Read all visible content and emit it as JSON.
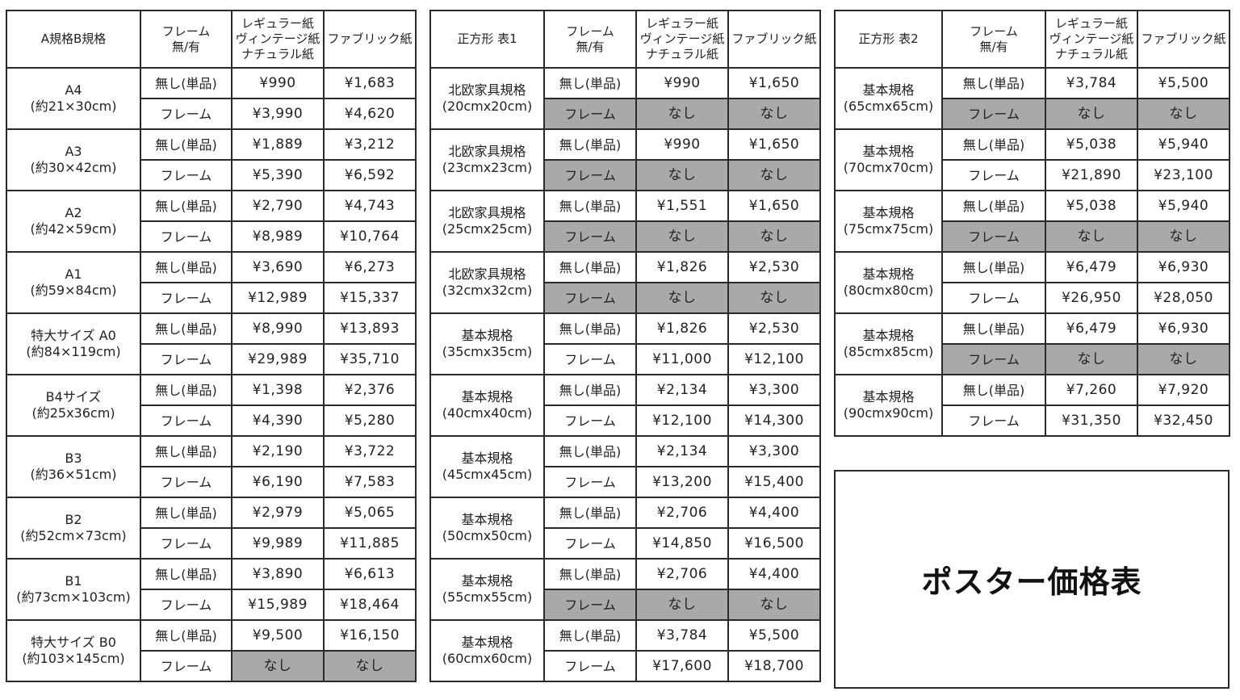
{
  "tables": [
    {
      "headers": [
        "A規格B規格",
        "フレーム\n無/有",
        "レギュラー紙\nヴィンテージ紙\nナチュラル紙",
        "ファブリック紙"
      ],
      "groups": [
        {
          "label": [
            "A4",
            "(約21×30cm)"
          ],
          "rows": [
            [
              "無し(単品)",
              "¥990",
              "¥1,683"
            ],
            [
              "フレーム",
              "¥3,990",
              "¥4,620"
            ]
          ]
        },
        {
          "label": [
            "A3",
            "(約30×42cm)"
          ],
          "rows": [
            [
              "無し(単品)",
              "¥1,889",
              "¥3,212"
            ],
            [
              "フレーム",
              "¥5,390",
              "¥6,592"
            ]
          ]
        },
        {
          "label": [
            "A2",
            "(約42×59cm)"
          ],
          "rows": [
            [
              "無し(単品)",
              "¥2,790",
              "¥4,743"
            ],
            [
              "フレーム",
              "¥8,989",
              "¥10,764"
            ]
          ]
        },
        {
          "label": [
            "A1",
            "(約59×84cm)"
          ],
          "rows": [
            [
              "無し(単品)",
              "¥3,690",
              "¥6,273"
            ],
            [
              "フレーム",
              "¥12,989",
              "¥15,337"
            ]
          ]
        },
        {
          "label": [
            "特大サイズ A0",
            "(約84×119cm)"
          ],
          "rows": [
            [
              "無し(単品)",
              "¥8,990",
              "¥13,893"
            ],
            [
              "フレーム",
              "¥29,989",
              "¥35,710"
            ]
          ]
        },
        {
          "label": [
            "B4サイズ",
            "(約25x36cm)"
          ],
          "rows": [
            [
              "無し(単品)",
              "¥1,398",
              "¥2,376"
            ],
            [
              "フレーム",
              "¥4,390",
              "¥5,280"
            ]
          ]
        },
        {
          "label": [
            "B3",
            "(約36×51cm)"
          ],
          "rows": [
            [
              "無し(単品)",
              "¥2,190",
              "¥3,722"
            ],
            [
              "フレーム",
              "¥6,190",
              "¥7,583"
            ]
          ]
        },
        {
          "label": [
            "B2",
            "(約52cm×73cm)"
          ],
          "rows": [
            [
              "無し(単品)",
              "¥2,979",
              "¥5,065"
            ],
            [
              "フレーム",
              "¥9,989",
              "¥11,885"
            ]
          ]
        },
        {
          "label": [
            "B1",
            "(約73cm×103cm)"
          ],
          "rows": [
            [
              "無し(単品)",
              "¥3,890",
              "¥6,613"
            ],
            [
              "フレーム",
              "¥15,989",
              "¥18,464"
            ]
          ]
        },
        {
          "label": [
            "特大サイズ B0",
            "(約103×145cm)"
          ],
          "rows": [
            [
              "無し(単品)",
              "¥9,500",
              "¥16,150"
            ],
            [
              "フレーム",
              "なし",
              "なし"
            ]
          ]
        }
      ]
    },
    {
      "headers": [
        "正方形 表1",
        "フレーム\n無/有",
        "レギュラー紙\nヴィンテージ紙\nナチュラル紙",
        "ファブリック紙"
      ],
      "groups": [
        {
          "label": [
            "北欧家具規格",
            "(20cmx20cm)"
          ],
          "rows": [
            [
              "無し(単品)",
              "¥990",
              "¥1,650"
            ],
            [
              "フレーム",
              "なし",
              "なし"
            ]
          ]
        },
        {
          "label": [
            "北欧家具規格",
            "(23cmx23cm)"
          ],
          "rows": [
            [
              "無し(単品)",
              "¥990",
              "¥1,650"
            ],
            [
              "フレーム",
              "なし",
              "なし"
            ]
          ]
        },
        {
          "label": [
            "北欧家具規格",
            "(25cmx25cm)"
          ],
          "rows": [
            [
              "無し(単品)",
              "¥1,551",
              "¥1,650"
            ],
            [
              "フレーム",
              "なし",
              "なし"
            ]
          ]
        },
        {
          "label": [
            "北欧家具規格",
            "(32cmx32cm)"
          ],
          "rows": [
            [
              "無し(単品)",
              "¥1,826",
              "¥2,530"
            ],
            [
              "フレーム",
              "なし",
              "なし"
            ]
          ]
        },
        {
          "label": [
            "基本規格",
            "(35cmx35cm)"
          ],
          "rows": [
            [
              "無し(単品)",
              "¥1,826",
              "¥2,530"
            ],
            [
              "フレーム",
              "¥11,000",
              "¥12,100"
            ]
          ]
        },
        {
          "label": [
            "基本規格",
            "(40cmx40cm)"
          ],
          "rows": [
            [
              "無し(単品)",
              "¥2,134",
              "¥3,300"
            ],
            [
              "フレーム",
              "¥12,100",
              "¥14,300"
            ]
          ]
        },
        {
          "label": [
            "基本規格",
            "(45cmx45cm)"
          ],
          "rows": [
            [
              "無し(単品)",
              "¥2,134",
              "¥3,300"
            ],
            [
              "フレーム",
              "¥13,200",
              "¥15,400"
            ]
          ]
        },
        {
          "label": [
            "基本規格",
            "(50cmx50cm)"
          ],
          "rows": [
            [
              "無し(単品)",
              "¥2,706",
              "¥4,400"
            ],
            [
              "フレーム",
              "¥14,850",
              "¥16,500"
            ]
          ]
        },
        {
          "label": [
            "基本規格",
            "(55cmx55cm)"
          ],
          "rows": [
            [
              "無し(単品)",
              "¥2,706",
              "¥4,400"
            ],
            [
              "フレーム",
              "なし",
              "なし"
            ]
          ]
        },
        {
          "label": [
            "基本規格",
            "(60cmx60cm)"
          ],
          "rows": [
            [
              "無し(単品)",
              "¥3,784",
              "¥5,500"
            ],
            [
              "フレーム",
              "¥17,600",
              "¥18,700"
            ]
          ]
        }
      ]
    },
    {
      "headers": [
        "正方形 表2",
        "フレーム\n無/有",
        "レギュラー紙\nヴィンテージ紙\nナチュラル紙",
        "ファブリック紙"
      ],
      "groups": [
        {
          "label": [
            "基本規格",
            "(65cmx65cm)"
          ],
          "rows": [
            [
              "無し(単品)",
              "¥3,784",
              "¥5,500"
            ],
            [
              "フレーム",
              "なし",
              "なし"
            ]
          ]
        },
        {
          "label": [
            "基本規格",
            "(70cmx70cm)"
          ],
          "rows": [
            [
              "無し(単品)",
              "¥5,038",
              "¥5,940"
            ],
            [
              "フレーム",
              "¥21,890",
              "¥23,100"
            ]
          ]
        },
        {
          "label": [
            "基本規格",
            "(75cmx75cm)"
          ],
          "rows": [
            [
              "無し(単品)",
              "¥5,038",
              "¥5,940"
            ],
            [
              "フレーム",
              "なし",
              "なし"
            ]
          ]
        },
        {
          "label": [
            "基本規格",
            "(80cmx80cm)"
          ],
          "rows": [
            [
              "無し(単品)",
              "¥6,479",
              "¥6,930"
            ],
            [
              "フレーム",
              "¥26,950",
              "¥28,050"
            ]
          ]
        },
        {
          "label": [
            "基本規格",
            "(85cmx85cm)"
          ],
          "rows": [
            [
              "無し(単品)",
              "¥6,479",
              "¥6,930"
            ],
            [
              "フレーム",
              "なし",
              "なし"
            ]
          ]
        },
        {
          "label": [
            "基本規格",
            "(90cmx90cm)"
          ],
          "rows": [
            [
              "無し(単品)",
              "¥7,260",
              "¥7,920"
            ],
            [
              "フレーム",
              "¥31,350",
              "¥32,450"
            ]
          ]
        }
      ]
    }
  ],
  "title": "ポスター価格表",
  "colors": {
    "unavailable_cell": "#a9a9a9",
    "border": "#2a2a2a"
  }
}
